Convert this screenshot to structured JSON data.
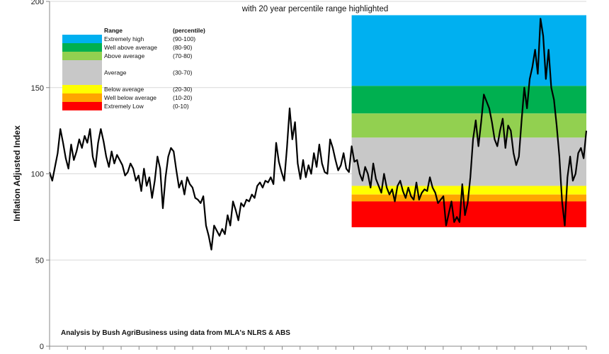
{
  "chart_data": {
    "type": "line",
    "subtitle": "with 20 year percentile range highlighted",
    "ylabel": "Inflation Adjusted Index",
    "xlabel": "",
    "ylim": [
      0,
      200
    ],
    "y_ticks": [
      0,
      50,
      100,
      150,
      200
    ],
    "x_tick_count": 31,
    "grid": true,
    "source_note": "Analysis by Bush AgriBusiness using data from MLA's NLRS & ABS",
    "legend": {
      "placement": "top-left",
      "header_range": "Range",
      "header_percentile": "(percentile)",
      "entries": [
        {
          "label": "Extremely high",
          "percentile": "(90-100)",
          "color": "#00b0f0"
        },
        {
          "label": "Well above average",
          "percentile": "(80-90)",
          "color": "#00b050"
        },
        {
          "label": "Above average",
          "percentile": "(70-80)",
          "color": "#92d050"
        },
        {
          "label": "Average",
          "percentile": "(30-70)",
          "color": "#c8c8c8"
        },
        {
          "label": "Below average",
          "percentile": "(20-30)",
          "color": "#ffff00"
        },
        {
          "label": "Well below average",
          "percentile": "(10-20)",
          "color": "#ffa500"
        },
        {
          "label": "Extremely Low",
          "percentile": "(0-10)",
          "color": "#ff0000"
        }
      ]
    },
    "bands": {
      "x_start_index": 112,
      "levels": [
        {
          "name": "Extremely high",
          "from": 151,
          "to": 192,
          "color": "#00b0f0"
        },
        {
          "name": "Well above average",
          "from": 135,
          "to": 151,
          "color": "#00b050"
        },
        {
          "name": "Above average",
          "from": 121,
          "to": 135,
          "color": "#92d050"
        },
        {
          "name": "Average",
          "from": 93,
          "to": 121,
          "color": "#c8c8c8"
        },
        {
          "name": "Below average",
          "from": 88,
          "to": 93,
          "color": "#ffff00"
        },
        {
          "name": "Well below average",
          "from": 84,
          "to": 88,
          "color": "#ffa500"
        },
        {
          "name": "Extremely Low",
          "from": 69,
          "to": 84,
          "color": "#ff0000"
        }
      ]
    },
    "series": [
      {
        "color": "#000000",
        "values": [
          101,
          96,
          104,
          112,
          126,
          118,
          109,
          103,
          117,
          108,
          113,
          120,
          115,
          122,
          118,
          126,
          110,
          104,
          118,
          126,
          119,
          110,
          104,
          113,
          106,
          111,
          108,
          105,
          99,
          101,
          106,
          103,
          96,
          99,
          90,
          103,
          93,
          98,
          86,
          96,
          110,
          103,
          80,
          98,
          110,
          115,
          113,
          102,
          92,
          96,
          88,
          98,
          94,
          92,
          86,
          85,
          83,
          87,
          70,
          64,
          56,
          70,
          67,
          64,
          68,
          65,
          76,
          70,
          84,
          79,
          73,
          83,
          81,
          85,
          84,
          88,
          86,
          93,
          95,
          92,
          96,
          95,
          98,
          94,
          118,
          107,
          101,
          96,
          115,
          138,
          120,
          130,
          106,
          97,
          108,
          98,
          105,
          100,
          112,
          104,
          117,
          106,
          101,
          100,
          120,
          115,
          108,
          102,
          105,
          112,
          103,
          101,
          116,
          107,
          108,
          100,
          96,
          104,
          100,
          92,
          106,
          97,
          93,
          89,
          100,
          92,
          88,
          91,
          84,
          93,
          96,
          90,
          86,
          92,
          87,
          85,
          95,
          85,
          89,
          91,
          90,
          98,
          92,
          89,
          83,
          85,
          87,
          70,
          77,
          84,
          72,
          75,
          72,
          94,
          76,
          83,
          98,
          120,
          131,
          116,
          130,
          146,
          142,
          138,
          130,
          120,
          116,
          125,
          132,
          115,
          128,
          125,
          112,
          105,
          110,
          131,
          150,
          138,
          155,
          162,
          172,
          158,
          190,
          180,
          155,
          172,
          150,
          143,
          128,
          110,
          84,
          70,
          98,
          110,
          96,
          100,
          112,
          115,
          109,
          125
        ]
      }
    ]
  }
}
